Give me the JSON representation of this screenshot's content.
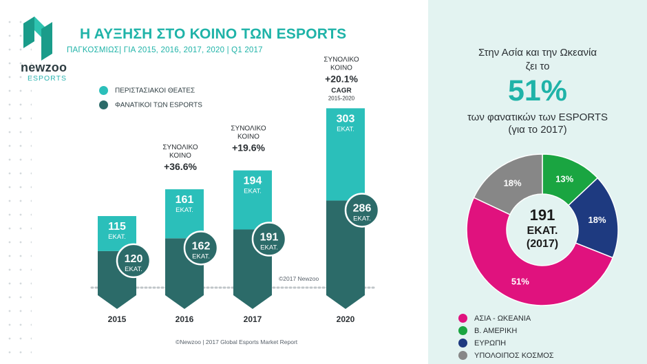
{
  "brand": {
    "name": "newzoo",
    "sub": "ESPORTS"
  },
  "title": "Η ΑΥΞΗΣΗ ΣΤΟ ΚΟΙΝΟ ΤΩΝ ESPORTS",
  "subtitle": "ΠΑΓΚΟΣΜΙΩΣ|   ΓΙΑ 2015, 2016, 2017, 2020 | Q1 2017",
  "legend": {
    "occasional": "ΠΕΡΙΣΤΑΣΙΑΚΟΙ ΘΕΑΤΕΣ",
    "enthusiasts": "ΦΑΝΑΤΙΚΟΙ ΤΩΝ ESPORTS"
  },
  "colors": {
    "occasional": "#2bbfba",
    "enthusiasts": "#2c6b69",
    "asia": "#e0127e",
    "north_america": "#1aa541",
    "europe": "#1e3a80",
    "rest": "#878787"
  },
  "unit_label": "ΕΚΑΤ.",
  "total_label": [
    "ΣΥΝΟΛΙΚΟ",
    "ΚΟΙΝΟ"
  ],
  "cagr_label": "CAGR",
  "cagr_period": "2015-2020",
  "copyright": "©2017 Newzoo",
  "source": "©Newzoo | 2017 Global Esports Market Report",
  "chart_data": [
    {
      "type": "bar",
      "stacked": true,
      "categories": [
        "2015",
        "2016",
        "2017",
        "2020"
      ],
      "series": [
        {
          "name": "ΦΑΝΑΤΙΚΟΙ ΤΩΝ ESPORTS",
          "values": [
            120,
            162,
            191,
            286
          ],
          "labels": [
            "120",
            "162",
            "191",
            "286"
          ]
        },
        {
          "name": "ΠΕΡΙΣΤΑΣΙΑΚΟΙ ΘΕΑΤΕΣ",
          "values": [
            115,
            161,
            194,
            303
          ],
          "labels": [
            "115",
            "161",
            "194",
            "303"
          ]
        }
      ],
      "growth": [
        {
          "category": "2016",
          "value": "+36.6%"
        },
        {
          "category": "2017",
          "value": "+19.6%"
        },
        {
          "category": "2020",
          "value": "+20.1%",
          "cagr": true
        }
      ]
    },
    {
      "type": "pie",
      "donut": true,
      "center_value": "191",
      "center_unit": "ΕΚΑΤ.",
      "center_year": "(2017)",
      "slices": [
        {
          "name": "ΑΣΙΑ - ΩΚΕΑΝΙΑ",
          "value": 51,
          "label": "51%"
        },
        {
          "name": "Β. ΑΜΕΡΙΚΗ",
          "value": 13,
          "label": "13%"
        },
        {
          "name": "ΕΥΡΩΠΗ",
          "value": 18,
          "label": "18%"
        },
        {
          "name": "ΥΠΟΛΟΙΠΟΣ ΚΟΣΜΟΣ",
          "value": 18,
          "label": "18%"
        }
      ]
    }
  ],
  "panel": {
    "line1": "Στην Ασία και την Ωκεανία",
    "line2": "ζει το",
    "big": "51%",
    "line3": "των φανατικών των ESPORTS",
    "line4": "(για το 2017)"
  }
}
